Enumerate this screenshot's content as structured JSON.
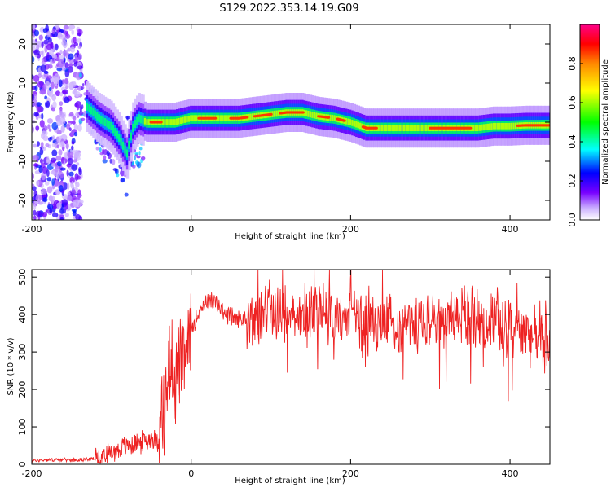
{
  "figure": {
    "title": "S129.2022.353.14.19.G09"
  },
  "colors": {
    "background": "#ffffff",
    "snr_line": "#ee2222",
    "axis": "#000000"
  },
  "chart_data": [
    {
      "type": "heatmap",
      "title": "S129.2022.353.14.19.G09",
      "xlabel": "Height of straight line (km)",
      "ylabel": "Frequency (Hz)",
      "xlim": [
        -200,
        450
      ],
      "ylim": [
        -25,
        25
      ],
      "x_ticks": [
        "-200",
        "0",
        "200",
        "400"
      ],
      "y_ticks": [
        "20",
        "10",
        "0",
        "-10",
        "-20"
      ],
      "grid": false,
      "ridge": {
        "x": [
          -130,
          -115,
          -100,
          -90,
          -80,
          -72,
          -65,
          -55,
          -40,
          -20,
          0,
          20,
          40,
          60,
          80,
          100,
          120,
          140,
          160,
          180,
          200,
          220,
          240,
          260,
          280,
          300,
          320,
          340,
          360,
          380,
          400,
          420,
          450
        ],
        "y": [
          4,
          1,
          -1,
          -4,
          -8,
          -1,
          1,
          0,
          0,
          0,
          1,
          1,
          1,
          1,
          1.5,
          2,
          2.5,
          2.5,
          1.5,
          1,
          0,
          -1.5,
          -1.5,
          -1.5,
          -1.5,
          -1.5,
          -1.5,
          -1.5,
          -1.5,
          -1,
          -1,
          -0.8,
          -0.8
        ]
      },
      "colorbar": {
        "label": "Normalized spectral amplitude",
        "ticks": [
          "0.0",
          "0.2",
          "0.4",
          "0.6",
          "0.8"
        ],
        "range": [
          0,
          1
        ],
        "colormap": "hsv"
      }
    },
    {
      "type": "line",
      "xlabel": "Height of straight line (km)",
      "ylabel": "SNR (10 * v/v)",
      "xlim": [
        -200,
        450
      ],
      "ylim": [
        0,
        520
      ],
      "x_ticks": [
        "-200",
        "0",
        "200",
        "400"
      ],
      "y_ticks": [
        "500",
        "400",
        "300",
        "200",
        "100",
        "0"
      ],
      "grid": false,
      "series": [
        {
          "x": [
            -200,
            -180,
            -160,
            -140,
            -120,
            -100,
            -90,
            -80,
            -70,
            -60,
            -50,
            -40,
            -35,
            -30,
            -25,
            -20,
            -15,
            -10,
            0,
            10,
            20,
            30,
            40,
            50,
            60,
            70,
            80,
            90,
            100,
            110,
            120,
            140,
            160,
            180,
            200,
            220,
            240,
            260,
            280,
            300,
            320,
            340,
            360,
            380,
            400,
            420,
            440,
            450
          ],
          "y": [
            10,
            12,
            12,
            12,
            15,
            30,
            40,
            50,
            55,
            60,
            70,
            60,
            130,
            220,
            300,
            230,
            270,
            260,
            360,
            410,
            440,
            430,
            410,
            395,
            385,
            390,
            380,
            410,
            420,
            390,
            405,
            400,
            410,
            395,
            390,
            385,
            380,
            370,
            375,
            380,
            385,
            400,
            390,
            380,
            360,
            350,
            330,
            320
          ]
        }
      ]
    }
  ]
}
